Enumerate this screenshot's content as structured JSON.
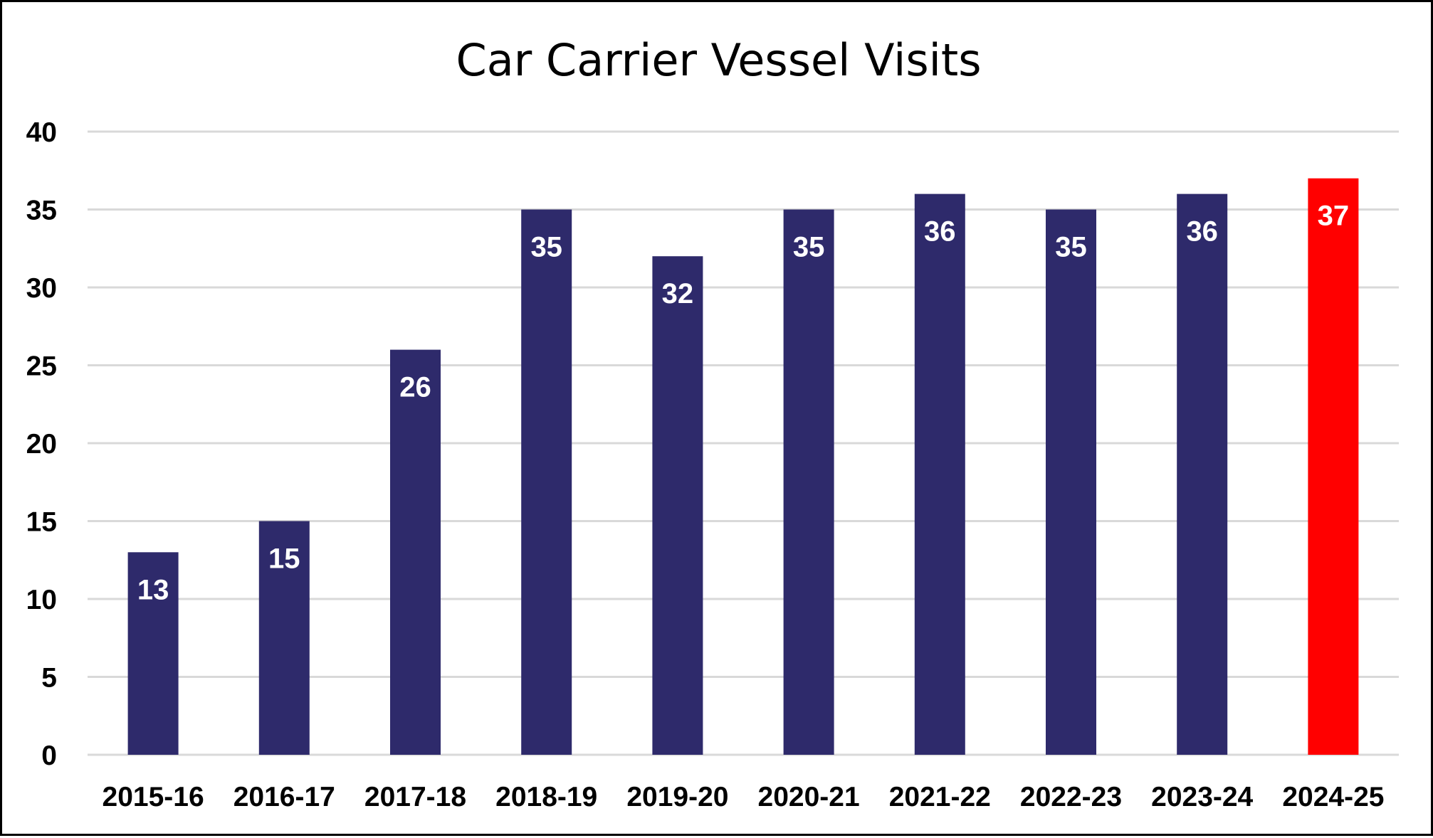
{
  "chart_data": {
    "type": "bar",
    "title": "Car Carrier Vessel Visits",
    "xlabel": "",
    "ylabel": "",
    "categories": [
      "2015-16",
      "2016-17",
      "2017-18",
      "2018-19",
      "2019-20",
      "2020-21",
      "2021-22",
      "2022-23",
      "2023-24",
      "2024-25"
    ],
    "values": [
      13,
      15,
      26,
      35,
      32,
      35,
      36,
      35,
      36,
      37
    ],
    "ylim": [
      0,
      40
    ],
    "yticks": [
      0,
      5,
      10,
      15,
      20,
      25,
      30,
      35,
      40
    ],
    "grid": true,
    "legend": "none",
    "data_labels": true,
    "colors": {
      "bar": "#2e2a6b",
      "highlight_bar": "#ff0000",
      "gridline": "#d9d9d9",
      "data_label": "#ffffff",
      "text": "#000000"
    },
    "highlight_category": "2024-25"
  }
}
